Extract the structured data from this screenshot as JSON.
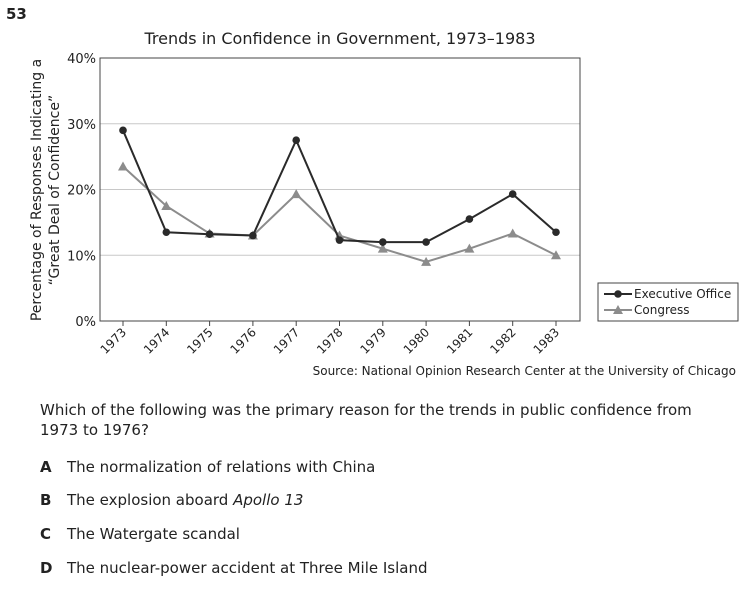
{
  "question_number": "53",
  "chart_data": {
    "type": "line",
    "title": "Trends in Confidence in Government, 1973–1983",
    "ylabel_line1": "Percentage of Responses Indicating a",
    "ylabel_line2": "“Great Deal of Confidence”",
    "xlabel": "",
    "categories": [
      "1973",
      "1974",
      "1975",
      "1976",
      "1977",
      "1978",
      "1979",
      "1980",
      "1981",
      "1982",
      "1983"
    ],
    "yticks": [
      "0%",
      "10%",
      "20%",
      "30%",
      "40%"
    ],
    "ylim": [
      0,
      40
    ],
    "grid": true,
    "legend_position": "right",
    "series": [
      {
        "name": "Executive Office",
        "marker": "circle",
        "color": "#2a2a2a",
        "values": [
          29,
          13.5,
          13.2,
          13,
          27.5,
          12.3,
          12,
          12,
          15.5,
          19.3,
          13.5
        ]
      },
      {
        "name": "Congress",
        "marker": "triangle",
        "color": "#8c8c8c",
        "values": [
          23.5,
          17.5,
          13.3,
          13,
          19.3,
          13,
          11,
          9,
          11,
          13.3,
          10
        ]
      }
    ],
    "source": "Source: National Opinion Research Center at the University of Chicago"
  },
  "question": {
    "text": "Which of the following was the primary reason for the trends in public confidence from 1973 to 1976?",
    "choices": [
      {
        "letter": "A",
        "pre": "The normalization of relations with China",
        "italic": "",
        "post": ""
      },
      {
        "letter": "B",
        "pre": "The explosion aboard ",
        "italic": "Apollo 13",
        "post": ""
      },
      {
        "letter": "C",
        "pre": "The Watergate scandal",
        "italic": "",
        "post": ""
      },
      {
        "letter": "D",
        "pre": "The nuclear-power accident at Three Mile Island",
        "italic": "",
        "post": ""
      }
    ]
  }
}
